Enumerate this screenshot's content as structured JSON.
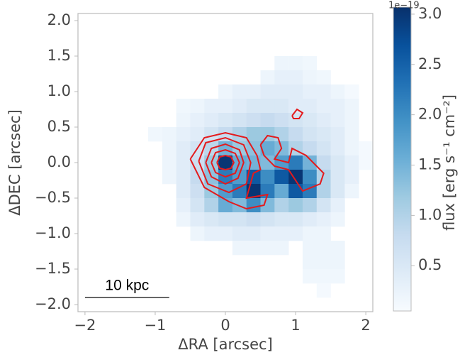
{
  "chart_data": {
    "type": "heatmap",
    "xlabel": "ΔRA [arcsec]",
    "ylabel": "ΔDEC [arcsec]",
    "xlim": [
      -2.1,
      2.1
    ],
    "ylim": [
      -2.1,
      2.1
    ],
    "xticks": [
      {
        "value": -2,
        "label": "−2"
      },
      {
        "value": -1,
        "label": "−1"
      },
      0,
      1,
      2
    ],
    "yticks": [
      {
        "value": -2,
        "label": "−2.0"
      },
      {
        "value": -1.5,
        "label": "−1.5"
      },
      {
        "value": -1,
        "label": "−1.0"
      },
      {
        "value": -0.5,
        "label": "−0.5"
      },
      {
        "value": 0,
        "label": "0.0"
      },
      0.5,
      {
        "value": 1,
        "label": "1.0"
      },
      1.5,
      {
        "value": 2,
        "label": "2.0"
      }
    ],
    "x": [
      -1.2,
      -1.0,
      -0.8,
      -0.6,
      -0.4,
      -0.2,
      0.0,
      0.2,
      0.4,
      0.6,
      0.8,
      1.0,
      1.2,
      1.4,
      1.6,
      1.8,
      2.0
    ],
    "y": [
      1.4,
      1.2,
      1.0,
      0.8,
      0.6,
      0.4,
      0.2,
      0.0,
      -0.2,
      -0.4,
      -0.6,
      -0.8,
      -1.0,
      -1.2,
      -1.4,
      -1.6,
      -1.8
    ],
    "z": [
      [
        null,
        null,
        null,
        null,
        null,
        null,
        null,
        null,
        null,
        null,
        0.2,
        0.2,
        0.15,
        null,
        null,
        null,
        null
      ],
      [
        null,
        null,
        null,
        null,
        null,
        null,
        null,
        null,
        null,
        0.2,
        0.3,
        0.3,
        0.2,
        0.15,
        null,
        null,
        null
      ],
      [
        null,
        null,
        null,
        null,
        null,
        null,
        0.2,
        0.3,
        0.3,
        0.4,
        0.4,
        0.4,
        0.3,
        0.3,
        0.2,
        0.1,
        null
      ],
      [
        null,
        null,
        null,
        0.15,
        0.2,
        0.3,
        0.3,
        0.4,
        0.5,
        0.5,
        0.5,
        0.4,
        0.4,
        0.3,
        0.3,
        0.2,
        null
      ],
      [
        null,
        null,
        null,
        0.2,
        0.3,
        0.4,
        0.5,
        0.6,
        0.7,
        0.8,
        0.7,
        0.6,
        0.5,
        0.4,
        0.3,
        0.2,
        null
      ],
      [
        null,
        0.15,
        0.2,
        0.3,
        0.4,
        0.6,
        0.8,
        1.0,
        1.2,
        1.2,
        1.0,
        0.8,
        0.6,
        0.5,
        0.4,
        0.2,
        null
      ],
      [
        null,
        null,
        0.2,
        0.4,
        0.6,
        0.9,
        1.5,
        1.2,
        1.3,
        1.6,
        1.4,
        1.0,
        0.8,
        0.6,
        0.4,
        0.2,
        0.1
      ],
      [
        null,
        null,
        0.2,
        0.4,
        0.7,
        1.2,
        3.0,
        1.6,
        1.5,
        1.4,
        1.8,
        2.2,
        1.5,
        0.8,
        0.5,
        0.3,
        0.1
      ],
      [
        null,
        null,
        0.2,
        0.4,
        0.8,
        1.3,
        2.2,
        1.8,
        2.6,
        2.0,
        2.6,
        3.0,
        2.0,
        1.0,
        0.5,
        0.3,
        null
      ],
      [
        null,
        null,
        null,
        0.4,
        0.7,
        1.2,
        1.8,
        2.2,
        3.0,
        2.2,
        1.6,
        2.6,
        2.2,
        1.0,
        0.5,
        0.2,
        null
      ],
      [
        null,
        null,
        null,
        0.3,
        0.6,
        1.0,
        1.6,
        1.4,
        2.0,
        1.4,
        1.0,
        1.2,
        1.0,
        0.6,
        0.3,
        null,
        null
      ],
      [
        null,
        null,
        null,
        0.2,
        0.4,
        0.5,
        0.6,
        0.6,
        0.7,
        0.6,
        0.5,
        0.5,
        0.4,
        0.3,
        0.2,
        null,
        null
      ],
      [
        null,
        null,
        null,
        null,
        0.2,
        0.3,
        0.3,
        0.4,
        0.4,
        0.3,
        0.3,
        0.3,
        0.2,
        0.2,
        null,
        null,
        null
      ],
      [
        null,
        null,
        null,
        null,
        null,
        null,
        null,
        0.2,
        0.2,
        0.2,
        0.2,
        null,
        0.2,
        0.2,
        0.2,
        null,
        null
      ],
      [
        null,
        null,
        null,
        null,
        null,
        null,
        null,
        null,
        null,
        null,
        null,
        null,
        0.2,
        0.2,
        0.2,
        null,
        null
      ],
      [
        null,
        null,
        null,
        null,
        null,
        null,
        null,
        null,
        null,
        null,
        null,
        null,
        0.15,
        0.15,
        0.15,
        null,
        null
      ],
      [
        null,
        null,
        null,
        null,
        null,
        null,
        null,
        null,
        null,
        null,
        null,
        null,
        null,
        0.1,
        null,
        null,
        null
      ]
    ],
    "colormap": [
      "#f7fbff",
      "#deebf7",
      "#c6dbef",
      "#9ecae1",
      "#6baed6",
      "#4292c6",
      "#2171b5",
      "#08519c",
      "#08306b"
    ],
    "clim": [
      0.05,
      3.07
    ],
    "colorbar_label": "flux [erg s⁻¹ cm⁻²]",
    "colorbar_offset": "1e−19",
    "colorbar_ticks": [
      0.5,
      {
        "value": 1,
        "label": "1.0"
      },
      1.5,
      {
        "value": 2,
        "label": "2.0"
      },
      2.5,
      {
        "value": 3,
        "label": "3.0"
      }
    ],
    "contour_color": "#e41a1c",
    "contours": [
      {
        "x": [
          -0.12,
          -0.08,
          0.0,
          0.08,
          0.12,
          0.08,
          0.0,
          -0.08,
          -0.12
        ],
        "y": [
          0.0,
          0.08,
          0.1,
          0.08,
          0.0,
          -0.08,
          -0.1,
          -0.08,
          0.0
        ]
      },
      {
        "x": [
          -0.2,
          -0.14,
          0.0,
          0.14,
          0.2,
          0.14,
          0.0,
          -0.14,
          -0.2
        ],
        "y": [
          0.0,
          0.14,
          0.18,
          0.13,
          0.0,
          -0.15,
          -0.2,
          -0.14,
          0.0
        ]
      },
      {
        "x": [
          -0.28,
          -0.2,
          0.0,
          0.2,
          0.26,
          0.18,
          0.0,
          -0.2,
          -0.28
        ],
        "y": [
          0.0,
          0.2,
          0.26,
          0.18,
          0.0,
          -0.22,
          -0.3,
          -0.2,
          0.0
        ]
      },
      {
        "x": [
          -0.38,
          -0.28,
          0.0,
          0.26,
          0.36,
          0.3,
          0.05,
          -0.25,
          -0.38
        ],
        "y": [
          0.02,
          0.28,
          0.35,
          0.25,
          0.0,
          -0.3,
          -0.42,
          -0.3,
          0.02
        ]
      },
      {
        "x": [
          -0.5,
          -0.3,
          0.0,
          0.3,
          0.45,
          0.5,
          0.4,
          0.3,
          0.6,
          0.55,
          0.3,
          0.05,
          -0.3,
          -0.5
        ],
        "y": [
          0.05,
          0.35,
          0.42,
          0.35,
          0.1,
          -0.1,
          -0.15,
          -0.5,
          -0.45,
          -0.6,
          -0.65,
          -0.55,
          -0.35,
          0.05
        ]
      },
      {
        "x": [
          0.5,
          0.6,
          0.75,
          0.8,
          0.7,
          0.9,
          0.95,
          1.15,
          1.4,
          1.35,
          1.1,
          0.9,
          0.7,
          0.55,
          0.5
        ],
        "y": [
          0.25,
          0.38,
          0.35,
          0.2,
          0.05,
          0.0,
          0.2,
          0.1,
          -0.15,
          -0.3,
          -0.4,
          -0.1,
          -0.05,
          0.1,
          0.25
        ]
      },
      {
        "x": [
          0.95,
          1.02,
          1.1,
          1.05,
          0.97,
          0.95
        ],
        "y": [
          0.66,
          0.75,
          0.7,
          0.62,
          0.62,
          0.66
        ]
      }
    ],
    "scalebar": {
      "label": "10 kpc",
      "x": [
        -2.0,
        -0.8
      ],
      "y": -1.9
    }
  }
}
